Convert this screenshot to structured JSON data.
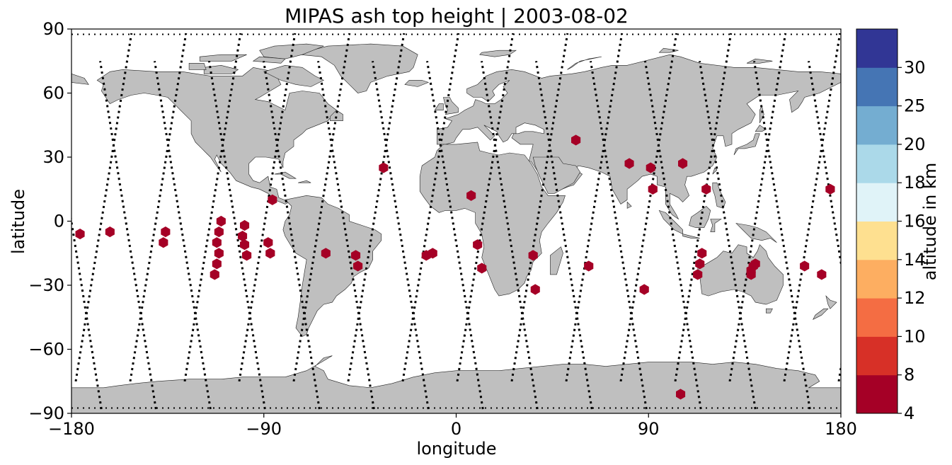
{
  "chart_data": {
    "type": "scatter",
    "title": "MIPAS ash top height | 2003-08-02",
    "xlabel": "longitude",
    "ylabel": "latitude",
    "xlim": [
      -180,
      180
    ],
    "ylim": [
      -90,
      90
    ],
    "xticks": [
      {
        "value": -180,
        "label": "−180"
      },
      {
        "value": -90,
        "label": "−90"
      },
      {
        "value": 0,
        "label": "0"
      },
      {
        "value": 90,
        "label": "90"
      },
      {
        "value": 180,
        "label": "180"
      }
    ],
    "yticks": [
      {
        "value": -90,
        "label": "−90"
      },
      {
        "value": -60,
        "label": "−60"
      },
      {
        "value": -30,
        "label": "−30"
      },
      {
        "value": 0,
        "label": "0"
      },
      {
        "value": 30,
        "label": "30"
      },
      {
        "value": 60,
        "label": "60"
      },
      {
        "value": 90,
        "label": "90"
      }
    ],
    "marker_color": "#a50026",
    "track_color": "#000000",
    "land_color": "#bfbfbf",
    "ash_points": [
      [
        -176,
        -6
      ],
      [
        -162,
        -5
      ],
      [
        -137,
        -10
      ],
      [
        -136,
        -5
      ],
      [
        -113,
        -25
      ],
      [
        -112,
        -20
      ],
      [
        -112,
        -10
      ],
      [
        -111,
        -15
      ],
      [
        -111,
        -5
      ],
      [
        -110,
        0
      ],
      [
        -100,
        -7
      ],
      [
        -99,
        -2
      ],
      [
        -99,
        -11
      ],
      [
        -98,
        -16
      ],
      [
        -88,
        -10
      ],
      [
        -87,
        -15
      ],
      [
        -86,
        10
      ],
      [
        -61,
        -15
      ],
      [
        -47,
        -16
      ],
      [
        -46,
        -21
      ],
      [
        -34,
        25
      ],
      [
        -14,
        -16
      ],
      [
        -11,
        -15
      ],
      [
        7,
        12
      ],
      [
        10,
        -11
      ],
      [
        12,
        -22
      ],
      [
        36,
        -16
      ],
      [
        37,
        -32
      ],
      [
        56,
        38
      ],
      [
        62,
        -21
      ],
      [
        81,
        27
      ],
      [
        88,
        -32
      ],
      [
        91,
        25
      ],
      [
        92,
        15
      ],
      [
        105,
        -81
      ],
      [
        106,
        27
      ],
      [
        117,
        15
      ],
      [
        113,
        -25
      ],
      [
        114,
        -20
      ],
      [
        115,
        -15
      ],
      [
        138,
        -25
      ],
      [
        138,
        -23
      ],
      [
        139,
        -21
      ],
      [
        140,
        -20
      ],
      [
        163,
        -21
      ],
      [
        171,
        -25
      ],
      [
        175,
        15
      ]
    ],
    "colorbar": {
      "label": "altitude in km",
      "boundaries": [
        4,
        8,
        10,
        12,
        14,
        16,
        18,
        20,
        25,
        30
      ],
      "colors": [
        "#a50026",
        "#d73027",
        "#f46d43",
        "#fdae61",
        "#fee090",
        "#e0f3f8",
        "#abd9e9",
        "#74add1",
        "#4575b4",
        "#313695"
      ],
      "ticks": [
        {
          "value": 4,
          "label": "4"
        },
        {
          "value": 8,
          "label": "8"
        },
        {
          "value": 10,
          "label": "10"
        },
        {
          "value": 12,
          "label": "12"
        },
        {
          "value": 14,
          "label": "14"
        },
        {
          "value": 16,
          "label": "16"
        },
        {
          "value": 18,
          "label": "18"
        },
        {
          "value": 20,
          "label": "20"
        },
        {
          "value": 25,
          "label": "25"
        },
        {
          "value": 30,
          "label": "30"
        }
      ]
    }
  }
}
